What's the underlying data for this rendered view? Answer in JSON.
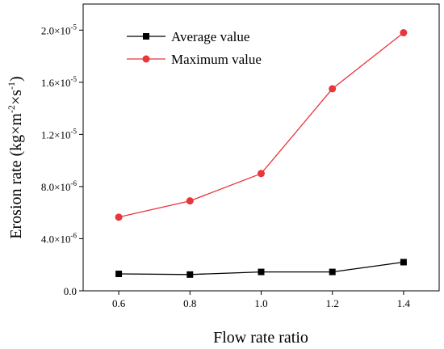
{
  "chart_data": {
    "type": "line",
    "title": "",
    "xlabel": "Flow rate ratio",
    "ylabel_main": "Erosion rate (kg×m",
    "ylabel_sup1": "-2",
    "ylabel_mid": "×s",
    "ylabel_sup2": "-1",
    "ylabel_end": ")",
    "x": [
      0.6,
      0.8,
      1.0,
      1.2,
      1.4
    ],
    "xlim": [
      0.5,
      1.5
    ],
    "ylim": [
      0,
      2.2e-05
    ],
    "x_ticks": [
      "0.6",
      "0.8",
      "1.0",
      "1.2",
      "1.4"
    ],
    "y_ticks": [
      {
        "value": 0,
        "mantissa": "0.0",
        "exp": ""
      },
      {
        "value": 4e-06,
        "mantissa": "4.0×10",
        "exp": "-6"
      },
      {
        "value": 8e-06,
        "mantissa": "8.0×10",
        "exp": "-6"
      },
      {
        "value": 1.2e-05,
        "mantissa": "1.2×10",
        "exp": "-5"
      },
      {
        "value": 1.6e-05,
        "mantissa": "1.6×10",
        "exp": "-5"
      },
      {
        "value": 2e-05,
        "mantissa": "2.0×10",
        "exp": "-5"
      }
    ],
    "grid": false,
    "legend_position": "top-left",
    "series": [
      {
        "name": "Average value",
        "color": "#000000",
        "marker": "square",
        "values": [
          1.3e-06,
          1.25e-06,
          1.45e-06,
          1.45e-06,
          2.2e-06
        ]
      },
      {
        "name": "Maximum value",
        "color": "#e8363a",
        "marker": "circle",
        "values": [
          5.65e-06,
          6.9e-06,
          9e-06,
          1.55e-05,
          1.98e-05
        ]
      }
    ]
  }
}
